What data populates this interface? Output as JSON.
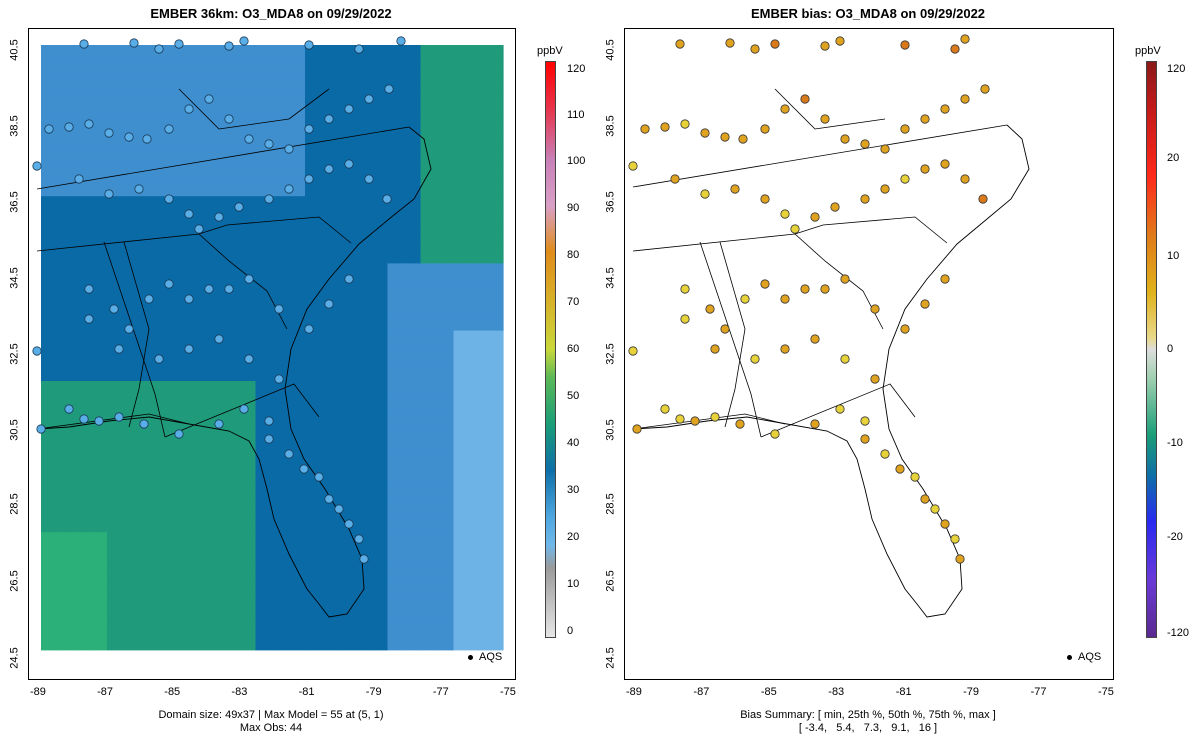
{
  "left_panel": {
    "title": "EMBER 36km: O3_MDA8 on 09/29/2022",
    "y_ticks": [
      "40.5",
      "38.5",
      "36.5",
      "34.5",
      "32.5",
      "30.5",
      "28.5",
      "26.5",
      "24.5"
    ],
    "x_ticks": [
      "-89",
      "-87",
      "-85",
      "-83",
      "-81",
      "-79",
      "-77",
      "-75"
    ],
    "footer_line1": "Domain size: 49x37 | Max Model = 55 at (5, 1)",
    "footer_line2": "Max Obs: 44",
    "legend": "AQS",
    "colorbar": {
      "unit": "ppbV",
      "labels": [
        "120",
        "110",
        "100",
        "90",
        "80",
        "70",
        "60",
        "50",
        "40",
        "30",
        "20",
        "10",
        "0"
      ]
    }
  },
  "right_panel": {
    "title": "EMBER bias: O3_MDA8 on 09/29/2022",
    "y_ticks": [
      "40.5",
      "38.5",
      "36.5",
      "34.5",
      "32.5",
      "30.5",
      "28.5",
      "26.5",
      "24.5"
    ],
    "x_ticks": [
      "-89",
      "-87",
      "-85",
      "-83",
      "-81",
      "-79",
      "-77",
      "-75"
    ],
    "footer_line1": "Bias Summary: [ min, 25th %, 50th %, 75th %, max ]",
    "footer_line2": "[ -3.4,   5.4,   7.3,   9.1,   16 ]",
    "legend": "AQS",
    "colorbar": {
      "unit": "ppbV",
      "labels": [
        "120",
        "20",
        "10",
        "0",
        "-10",
        "-20",
        "-120"
      ]
    }
  },
  "colors": {
    "model_deep": "#0a6aa6",
    "model_mid": "#3f8fcf",
    "model_light": "#6db3e6",
    "model_green": "#1f9a7a",
    "model_green_light": "#2bb07a",
    "obs_fill": "#5aaee8",
    "bias_low": "#e8d23a",
    "bias_mid": "#e0a31f",
    "bias_high": "#d87a1a"
  },
  "map_data": {
    "variable": "O3_MDA8",
    "date": "09/29/2022",
    "lon_range": [
      -89.2,
      -74.8
    ],
    "lat_range": [
      24.5,
      40.7
    ],
    "model_colorbar_range": [
      0,
      120
    ],
    "bias_colorbar_range": [
      -120,
      120
    ],
    "bias_summary": {
      "min": -3.4,
      "p25": 5.4,
      "p50": 7.3,
      "p75": 9.1,
      "max": 16
    }
  }
}
